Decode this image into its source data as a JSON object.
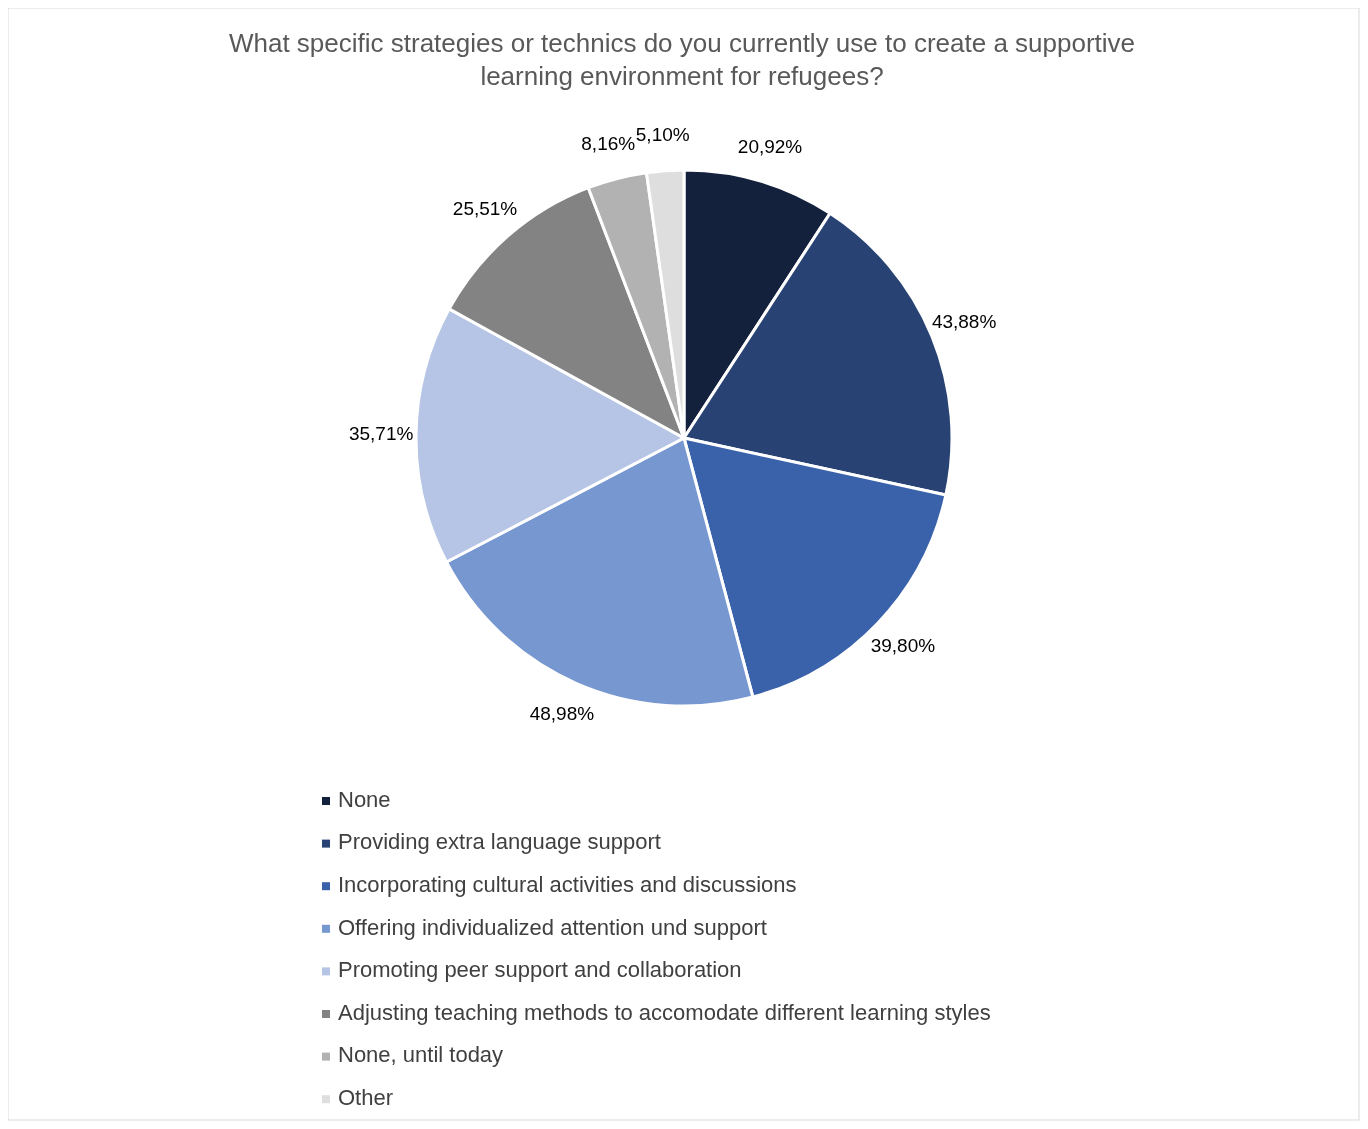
{
  "chart_data": {
    "type": "pie",
    "title": "What specific strategies or technics do you currently use to create a supportive learning environment for refugees?",
    "categories": [
      "None",
      "Providing extra language support",
      "Incorporating cultural activities and discussions",
      "Offering individualized attention und support",
      "Promoting peer support and collaboration",
      "Adjusting teaching methods to accomodate different learning styles",
      "None, until today",
      "Other"
    ],
    "values": [
      20.92,
      43.88,
      39.8,
      48.98,
      35.71,
      25.51,
      8.16,
      5.1
    ],
    "value_labels": [
      "20,92%",
      "43,88%",
      "39,80%",
      "48,98%",
      "35,71%",
      "25,51%",
      "8,16%",
      "5,10%"
    ],
    "colors": [
      "#14213d",
      "#284373",
      "#3a62aa",
      "#7797d0",
      "#b6c5e5",
      "#838383",
      "#b2b2b2",
      "#dedede"
    ],
    "legend": "bottom"
  }
}
